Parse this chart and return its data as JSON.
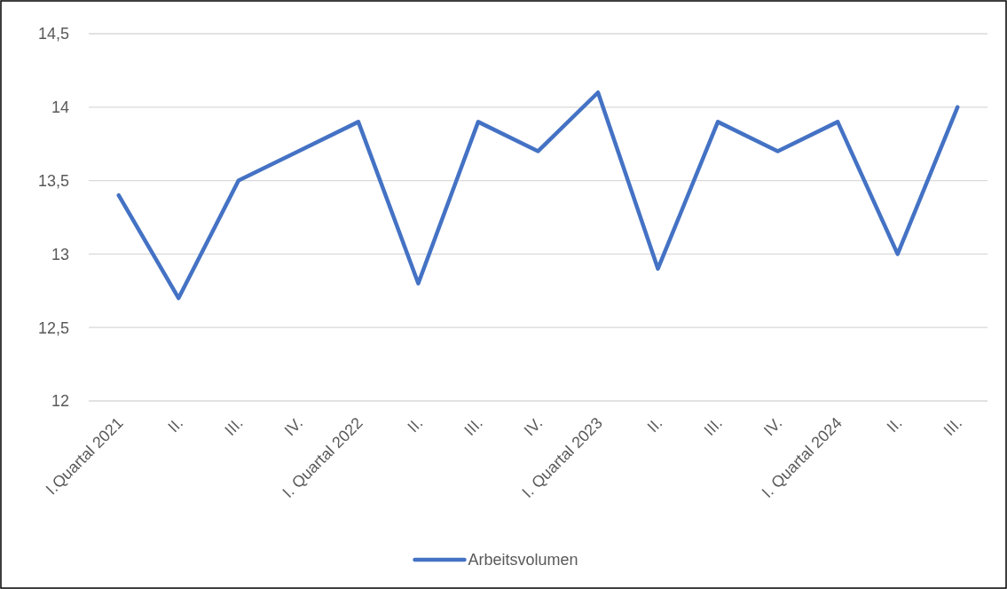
{
  "chart_data": {
    "type": "line",
    "categories": [
      "I.Quartal 2021",
      "II.",
      "III.",
      "IV.",
      "I. Quartal 2022",
      "II.",
      "III.",
      "IV.",
      "I. Quartal 2023",
      "II.",
      "III.",
      "IV.",
      "I. Quartal 2024",
      "II.",
      "III."
    ],
    "series": [
      {
        "name": "Arbeitsvolumen",
        "color": "#4472c4",
        "values": [
          13.4,
          12.7,
          13.5,
          13.7,
          13.9,
          12.8,
          13.9,
          13.7,
          14.1,
          12.9,
          13.9,
          13.7,
          13.9,
          13.0,
          14.0
        ]
      }
    ],
    "ylim": [
      12,
      14.5
    ],
    "yticks": [
      12,
      {
        "value": 12.5,
        "label": "12,5"
      },
      13,
      {
        "value": 13.5,
        "label": "13,5"
      },
      14,
      {
        "value": 14.5,
        "label": "14,5"
      }
    ],
    "grid": "y",
    "legend": "bottom",
    "marker": "none",
    "line_style": "solid"
  }
}
